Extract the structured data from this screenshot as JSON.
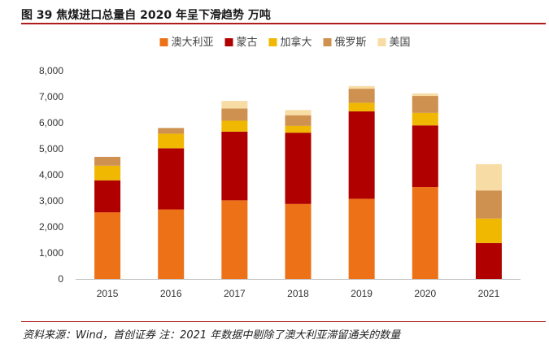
{
  "figure": {
    "title": "图 39  焦煤进口总量自 2020 年呈下滑趋势  万吨",
    "source": "资料来源：Wind，首创证券  注：2021 年数据中剔除了澳大利亚滞留通关的数量"
  },
  "chart_data": {
    "type": "bar",
    "stacked": true,
    "title": "焦煤进口总量自 2020 年呈下滑趋势",
    "ylabel": "万吨",
    "xlabel": "",
    "ylim": [
      0,
      8000
    ],
    "yticks": [
      0,
      1000,
      2000,
      3000,
      4000,
      5000,
      6000,
      7000,
      8000
    ],
    "ytick_labels": [
      "0",
      "1,000",
      "2,000",
      "3,000",
      "4,000",
      "5,000",
      "6,000",
      "7,000",
      "8,000"
    ],
    "grid": false,
    "legend_position": "top-center",
    "categories": [
      "2015",
      "2016",
      "2017",
      "2018",
      "2019",
      "2020",
      "2021"
    ],
    "series": [
      {
        "name": "澳大利亚",
        "color": "#ed7117",
        "values": [
          2560,
          2670,
          3020,
          2880,
          3080,
          3530,
          0
        ]
      },
      {
        "name": "蒙古",
        "color": "#b00000",
        "values": [
          1230,
          2350,
          2640,
          2740,
          3360,
          2370,
          1380
        ]
      },
      {
        "name": "加拿大",
        "color": "#f0b800",
        "values": [
          560,
          560,
          420,
          260,
          330,
          480,
          940
        ]
      },
      {
        "name": "俄罗斯",
        "color": "#cf9150",
        "values": [
          340,
          220,
          470,
          410,
          540,
          650,
          1080
        ]
      },
      {
        "name": "美国",
        "color": "#f8dca5",
        "values": [
          0,
          0,
          290,
          200,
          100,
          100,
          1010
        ]
      }
    ]
  }
}
